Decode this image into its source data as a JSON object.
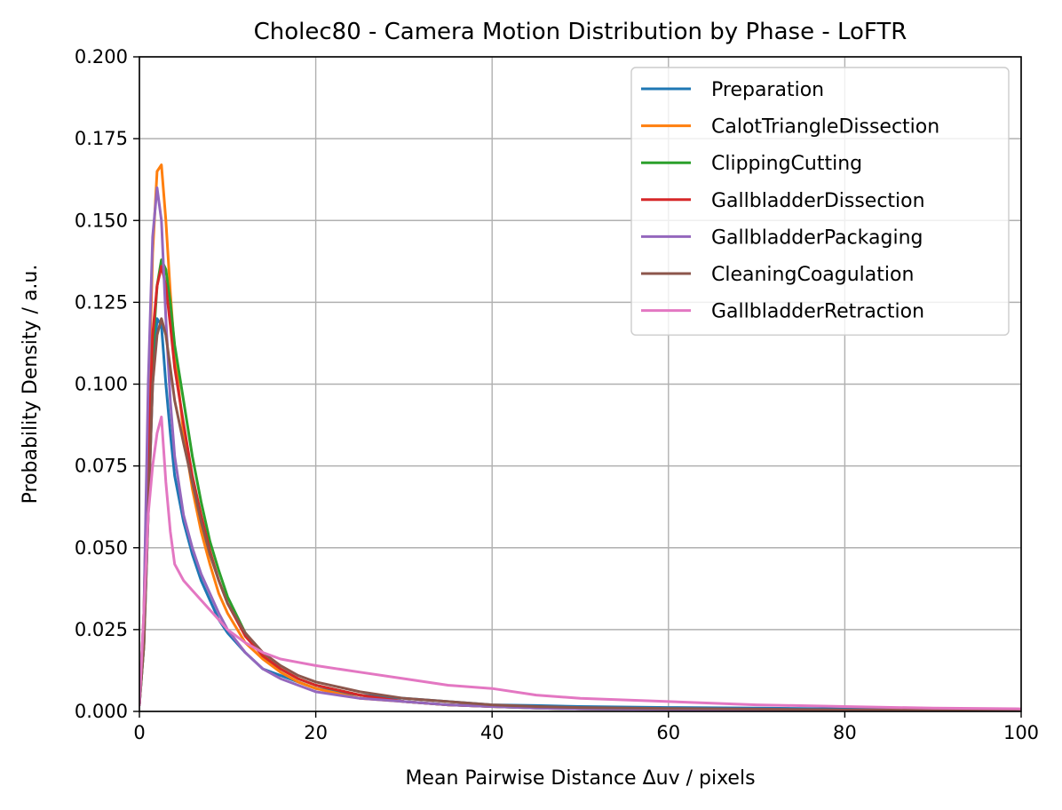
{
  "chart_data": {
    "type": "line",
    "title": "Cholec80 - Camera Motion Distribution by Phase - LoFTR",
    "xlabel": "Mean Pairwise Distance Δuv / pixels",
    "ylabel": "Probability Density / a.u.",
    "xlim": [
      0,
      100
    ],
    "ylim": [
      0,
      0.2
    ],
    "xticks": [
      0,
      20,
      40,
      60,
      80,
      100
    ],
    "xtick_labels": [
      "0",
      "20",
      "40",
      "60",
      "80",
      "100"
    ],
    "yticks": [
      0,
      0.025,
      0.05,
      0.075,
      0.1,
      0.125,
      0.15,
      0.175,
      0.2
    ],
    "ytick_labels": [
      "0.000",
      "0.025",
      "0.050",
      "0.075",
      "0.100",
      "0.125",
      "0.150",
      "0.175",
      "0.200"
    ],
    "grid": true,
    "legend_position": "top-right",
    "series": [
      {
        "name": "Preparation",
        "color": "#1f77b4",
        "x": [
          0,
          0.5,
          1,
          1.5,
          2,
          2.5,
          3,
          3.5,
          4,
          5,
          6,
          7,
          8,
          9,
          10,
          12,
          14,
          16,
          18,
          20,
          25,
          30,
          35,
          40,
          45,
          50,
          60,
          70,
          80,
          90,
          100
        ],
        "y": [
          0.002,
          0.02,
          0.06,
          0.1,
          0.12,
          0.118,
          0.1,
          0.085,
          0.072,
          0.058,
          0.048,
          0.04,
          0.034,
          0.028,
          0.024,
          0.018,
          0.013,
          0.011,
          0.009,
          0.007,
          0.005,
          0.004,
          0.003,
          0.002,
          0.0018,
          0.0015,
          0.0012,
          0.001,
          0.0008,
          0.0006,
          0.0005
        ]
      },
      {
        "name": "CalotTriangleDissection",
        "color": "#ff7f0e",
        "x": [
          0,
          0.5,
          1,
          1.5,
          2,
          2.5,
          3,
          3.5,
          4,
          5,
          6,
          7,
          8,
          9,
          10,
          12,
          14,
          16,
          18,
          20,
          25,
          30,
          35,
          40,
          45,
          50,
          60,
          70,
          80,
          90,
          100
        ],
        "y": [
          0.002,
          0.03,
          0.09,
          0.14,
          0.165,
          0.167,
          0.15,
          0.128,
          0.11,
          0.085,
          0.068,
          0.055,
          0.045,
          0.036,
          0.03,
          0.021,
          0.016,
          0.012,
          0.009,
          0.007,
          0.004,
          0.003,
          0.002,
          0.0015,
          0.001,
          0.0008,
          0.0006,
          0.0004,
          0.0003,
          0.0002,
          0.0002
        ]
      },
      {
        "name": "ClippingCutting",
        "color": "#2ca02c",
        "x": [
          0,
          0.5,
          1,
          1.5,
          2,
          2.5,
          3,
          3.5,
          4,
          5,
          6,
          7,
          8,
          9,
          10,
          12,
          14,
          16,
          18,
          20,
          25,
          30,
          35,
          40,
          45,
          50,
          60,
          70,
          80,
          90,
          100
        ],
        "y": [
          0.002,
          0.02,
          0.07,
          0.11,
          0.13,
          0.138,
          0.135,
          0.125,
          0.112,
          0.095,
          0.078,
          0.064,
          0.052,
          0.043,
          0.035,
          0.024,
          0.017,
          0.013,
          0.01,
          0.008,
          0.005,
          0.003,
          0.002,
          0.0015,
          0.001,
          0.0008,
          0.0006,
          0.0004,
          0.0003,
          0.0002,
          0.0002
        ]
      },
      {
        "name": "GallbladderDissection",
        "color": "#d62728",
        "x": [
          0,
          0.5,
          1,
          1.5,
          2,
          2.5,
          3,
          3.5,
          4,
          5,
          6,
          7,
          8,
          9,
          10,
          12,
          14,
          16,
          18,
          20,
          25,
          30,
          35,
          40,
          45,
          50,
          60,
          70,
          80,
          90,
          100
        ],
        "y": [
          0.002,
          0.025,
          0.075,
          0.115,
          0.13,
          0.136,
          0.13,
          0.118,
          0.105,
          0.088,
          0.072,
          0.06,
          0.049,
          0.04,
          0.033,
          0.023,
          0.017,
          0.013,
          0.01,
          0.008,
          0.005,
          0.003,
          0.002,
          0.0015,
          0.0012,
          0.001,
          0.0007,
          0.0005,
          0.0004,
          0.0003,
          0.0002
        ]
      },
      {
        "name": "GallbladderPackaging",
        "color": "#9467bd",
        "x": [
          0,
          0.5,
          1,
          1.5,
          2,
          2.5,
          3,
          3.5,
          4,
          5,
          6,
          7,
          8,
          9,
          10,
          12,
          14,
          16,
          18,
          20,
          25,
          30,
          35,
          40,
          45,
          50,
          60,
          70,
          80,
          90,
          100
        ],
        "y": [
          0.002,
          0.03,
          0.1,
          0.145,
          0.16,
          0.15,
          0.12,
          0.095,
          0.078,
          0.06,
          0.05,
          0.042,
          0.036,
          0.03,
          0.025,
          0.018,
          0.013,
          0.01,
          0.008,
          0.006,
          0.004,
          0.003,
          0.002,
          0.0015,
          0.001,
          0.0008,
          0.0006,
          0.0004,
          0.0003,
          0.0002,
          0.0002
        ]
      },
      {
        "name": "CleaningCoagulation",
        "color": "#8c564b",
        "x": [
          0,
          0.5,
          1,
          1.5,
          2,
          2.5,
          3,
          3.5,
          4,
          5,
          6,
          7,
          8,
          9,
          10,
          12,
          14,
          16,
          18,
          20,
          25,
          30,
          35,
          40,
          45,
          50,
          60,
          70,
          80,
          90,
          100
        ],
        "y": [
          0.002,
          0.02,
          0.06,
          0.1,
          0.115,
          0.12,
          0.115,
          0.105,
          0.095,
          0.082,
          0.07,
          0.058,
          0.048,
          0.04,
          0.033,
          0.024,
          0.018,
          0.014,
          0.011,
          0.009,
          0.006,
          0.004,
          0.003,
          0.002,
          0.0015,
          0.0012,
          0.0009,
          0.0007,
          0.0005,
          0.0004,
          0.0003
        ]
      },
      {
        "name": "GallbladderRetraction",
        "color": "#e377c2",
        "x": [
          0,
          0.5,
          1,
          1.5,
          2,
          2.5,
          3,
          3.5,
          4,
          5,
          6,
          7,
          8,
          9,
          10,
          12,
          14,
          16,
          18,
          20,
          25,
          30,
          35,
          40,
          45,
          50,
          60,
          70,
          80,
          90,
          100
        ],
        "y": [
          0.002,
          0.03,
          0.06,
          0.075,
          0.085,
          0.09,
          0.07,
          0.055,
          0.045,
          0.04,
          0.037,
          0.034,
          0.031,
          0.028,
          0.025,
          0.021,
          0.018,
          0.016,
          0.015,
          0.014,
          0.012,
          0.01,
          0.008,
          0.007,
          0.005,
          0.004,
          0.003,
          0.002,
          0.0015,
          0.001,
          0.0008
        ]
      }
    ]
  }
}
